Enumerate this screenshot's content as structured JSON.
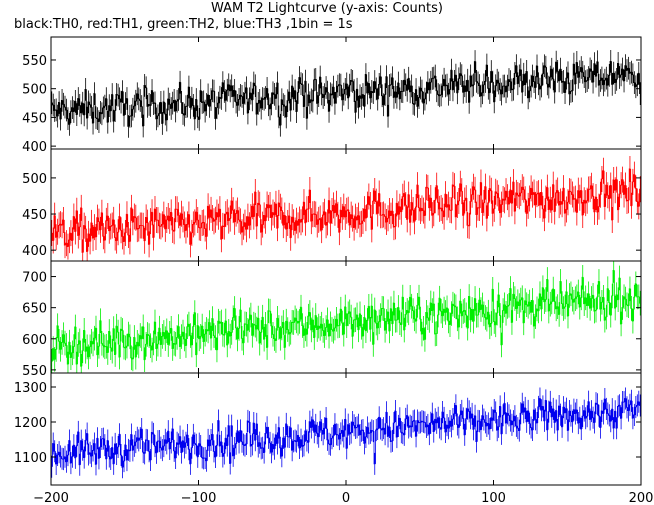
{
  "title": "WAM T2 Lightcurve (y-axis: Counts)",
  "subtitle": "black:TH0, red:TH1, green:TH2, blue:TH3 ,1bin = 1s",
  "chart_data": {
    "type": "line",
    "bins": 400,
    "x_range": [
      -200,
      200
    ],
    "x_ticks": [
      -200,
      -100,
      0,
      100,
      200
    ],
    "shared_x_axis": true,
    "step_style": true,
    "panels": [
      {
        "series": "TH0",
        "color": "#000000",
        "ylim": [
          395,
          590
        ],
        "y_ticks": [
          400,
          450,
          500,
          550
        ],
        "trend": [
          460,
          525
        ],
        "noise": 22
      },
      {
        "series": "TH1",
        "color": "#ff0000",
        "ylim": [
          385,
          540
        ],
        "y_ticks": [
          400,
          450,
          500
        ],
        "trend": [
          422,
          482
        ],
        "noise": 20
      },
      {
        "series": "TH2",
        "color": "#00ee00",
        "ylim": [
          545,
          725
        ],
        "y_ticks": [
          550,
          600,
          650,
          700
        ],
        "trend": [
          588,
          666
        ],
        "noise": 22
      },
      {
        "series": "TH3",
        "color": "#0000ee",
        "ylim": [
          1020,
          1340
        ],
        "y_ticks": [
          1100,
          1200,
          1300
        ],
        "trend": [
          1110,
          1235
        ],
        "noise": 35
      }
    ]
  }
}
